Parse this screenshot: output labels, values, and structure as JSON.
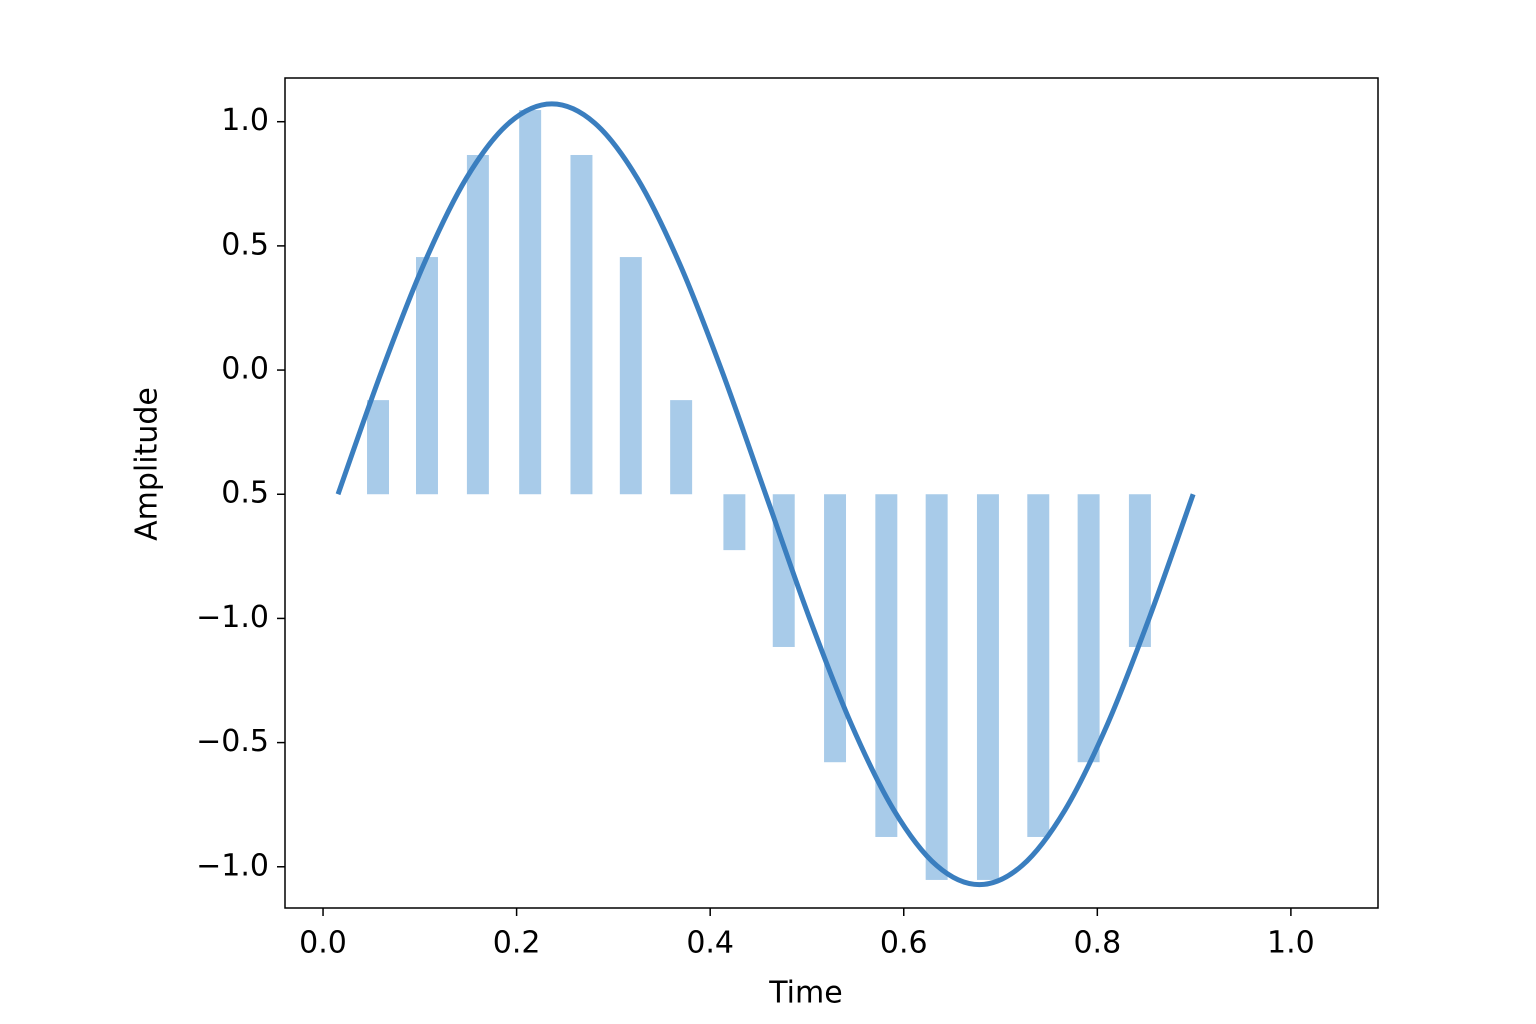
{
  "chart_data": {
    "type": "bar_line",
    "x_label": "Time",
    "y_label": "Amplitude",
    "xlim": [
      -0.0393,
      1.09
    ],
    "ylim": [
      -2.166,
      1.176
    ],
    "xticks": [
      {
        "value": 0,
        "label": "0.0"
      },
      0.2,
      0.4,
      0.6,
      0.8,
      {
        "value": 1,
        "label": "1.0"
      }
    ],
    "yticks": [
      {
        "value": 1,
        "label": "1.0"
      },
      0.5,
      {
        "value": 0,
        "label": "0.0"
      },
      {
        "value": -0.5,
        "label": "0.5"
      },
      {
        "value": -1,
        "label": "−1.0"
      },
      {
        "value": -1.5,
        "label": "−0.5"
      },
      {
        "value": -2,
        "label": "−1.0"
      }
    ],
    "bars": {
      "color": "#a8cbe9",
      "bottom": -0.5,
      "width": 0.0227,
      "x": [
        0.0568,
        0.1074,
        0.16,
        0.214,
        0.267,
        0.318,
        0.37,
        0.425,
        0.476,
        0.529,
        0.582,
        0.634,
        0.687,
        0.739,
        0.791,
        0.844
      ],
      "values": [
        -0.121,
        0.455,
        0.866,
        1.047,
        0.866,
        0.455,
        -0.121,
        -0.725,
        -1.115,
        -1.579,
        -1.88,
        -2.053,
        -2.053,
        -1.88,
        -1.579,
        -1.115
      ]
    },
    "line": {
      "color": "#3a7ebf",
      "x": [
        0.0155,
        0.0597,
        0.1039,
        0.148,
        0.1922,
        0.2364,
        0.2806,
        0.3247,
        0.3689,
        0.4131,
        0.4573,
        0.5014,
        0.5456,
        0.5898,
        0.634,
        0.6781,
        0.7223,
        0.7665,
        0.8107,
        0.8548,
        0.899
      ],
      "values": [
        -0.5,
        -0.014,
        0.424,
        0.772,
        0.995,
        1.072,
        0.995,
        0.772,
        0.424,
        -0.014,
        -0.5,
        -0.986,
        -1.424,
        -1.772,
        -1.995,
        -2.072,
        -1.995,
        -1.772,
        -1.424,
        -0.986,
        -0.5
      ]
    }
  }
}
